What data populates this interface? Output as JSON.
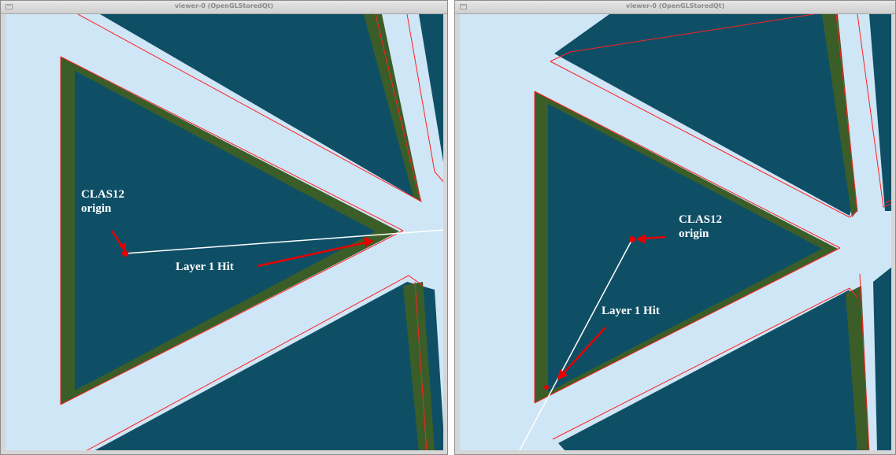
{
  "windows": [
    {
      "title": "viewer-0 (OpenGLStoredQt)",
      "annotations": {
        "origin_label_line1": "CLAS12",
        "origin_label_line2": "origin",
        "hit_label": "Layer 1 Hit"
      }
    },
    {
      "title": "viewer-0 (OpenGLStoredQt)",
      "annotations": {
        "origin_label_line1": "CLAS12",
        "origin_label_line2": "origin",
        "hit_label": "Layer 1 Hit"
      }
    }
  ],
  "colors": {
    "background": "#cfe6f6",
    "module_fill": "#0f4f66",
    "module_edge": "#3b5e28",
    "outline": "#ff2020",
    "arrow": "#e80000",
    "track": "#ffffff"
  }
}
